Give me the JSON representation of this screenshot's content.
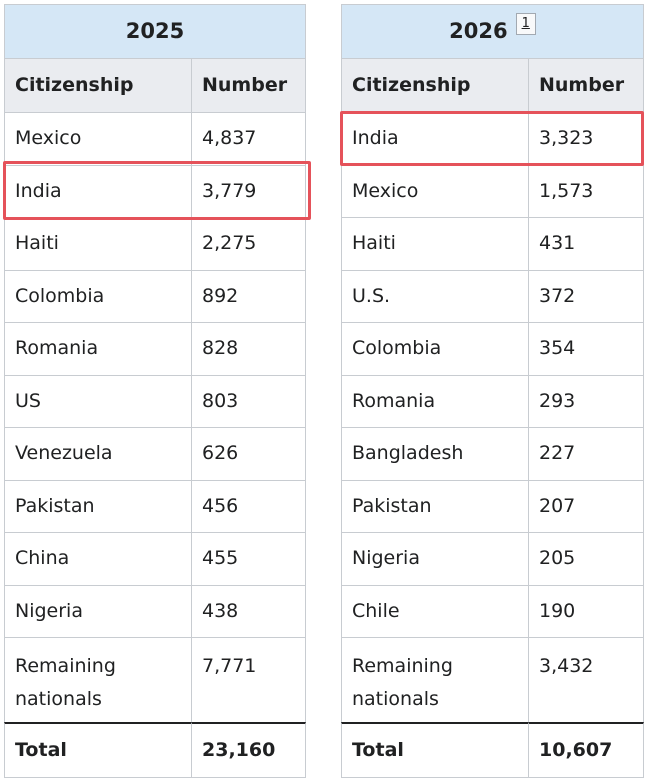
{
  "tables": [
    {
      "title": "2025",
      "headers": [
        "Citizenship",
        "Number"
      ],
      "rows": [
        [
          "Mexico",
          "4,837"
        ],
        [
          "India",
          "3,779"
        ],
        [
          "Haiti",
          "2,275"
        ],
        [
          "Colombia",
          "892"
        ],
        [
          "Romania",
          "828"
        ],
        [
          "US",
          "803"
        ],
        [
          "Venezuela",
          "626"
        ],
        [
          "Pakistan",
          "456"
        ],
        [
          "China",
          "455"
        ],
        [
          "Nigeria",
          "438"
        ],
        [
          "Remaining nationals",
          "7,771"
        ]
      ],
      "total": [
        "Total",
        "23,160"
      ]
    },
    {
      "title": "2026",
      "footnote": "1",
      "headers": [
        "Citizenship",
        "Number"
      ],
      "rows": [
        [
          "India",
          "3,323"
        ],
        [
          "Mexico",
          "1,573"
        ],
        [
          "Haiti",
          "431"
        ],
        [
          "U.S.",
          "372"
        ],
        [
          "Colombia",
          "354"
        ],
        [
          "Romania",
          "293"
        ],
        [
          "Bangladesh",
          "227"
        ],
        [
          "Pakistan",
          "207"
        ],
        [
          "Nigeria",
          "205"
        ],
        [
          "Chile",
          "190"
        ],
        [
          "Remaining nationals",
          "3,432"
        ]
      ],
      "total": [
        "Total",
        "10,607"
      ]
    }
  ]
}
